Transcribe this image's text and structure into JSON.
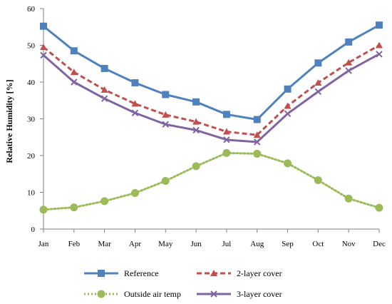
{
  "chart_data": {
    "type": "line",
    "categories": [
      "Jan",
      "Feb",
      "Mar",
      "Apr",
      "May",
      "Jun",
      "Jul",
      "Aug",
      "Sep",
      "Oct",
      "Nov",
      "Dec"
    ],
    "ylabel": "Relative Humidity [%]",
    "xlabel": "",
    "ylim": [
      0,
      60
    ],
    "yticks": [
      0,
      10,
      20,
      30,
      40,
      50,
      60
    ],
    "grid": false,
    "legend_position": "bottom",
    "series": [
      {
        "name": "Reference",
        "color": "#4F81BD",
        "marker": "square",
        "dash": "solid",
        "values": [
          55.2,
          48.5,
          43.7,
          39.8,
          36.6,
          34.6,
          31.2,
          29.8,
          38.1,
          45.2,
          50.9,
          55.5
        ]
      },
      {
        "name": "2-layer cover",
        "color": "#C0504D",
        "marker": "triangle",
        "dash": "dashed",
        "values": [
          49.5,
          42.7,
          37.9,
          34.1,
          31.1,
          29.2,
          26.5,
          25.6,
          33.5,
          39.8,
          45.3,
          50.0
        ]
      },
      {
        "name": "Outside air temp",
        "color": "#9BBB59",
        "marker": "circle",
        "dash": "dotted",
        "values": [
          5.3,
          5.9,
          7.6,
          9.8,
          13.1,
          17.1,
          20.7,
          20.5,
          17.9,
          13.3,
          8.3,
          5.8
        ]
      },
      {
        "name": "3-layer cover",
        "color": "#8064A2",
        "marker": "x",
        "dash": "solid",
        "values": [
          47.3,
          40.0,
          35.5,
          31.6,
          28.5,
          26.9,
          24.3,
          23.7,
          31.4,
          37.4,
          43.1,
          47.6
        ]
      }
    ]
  }
}
